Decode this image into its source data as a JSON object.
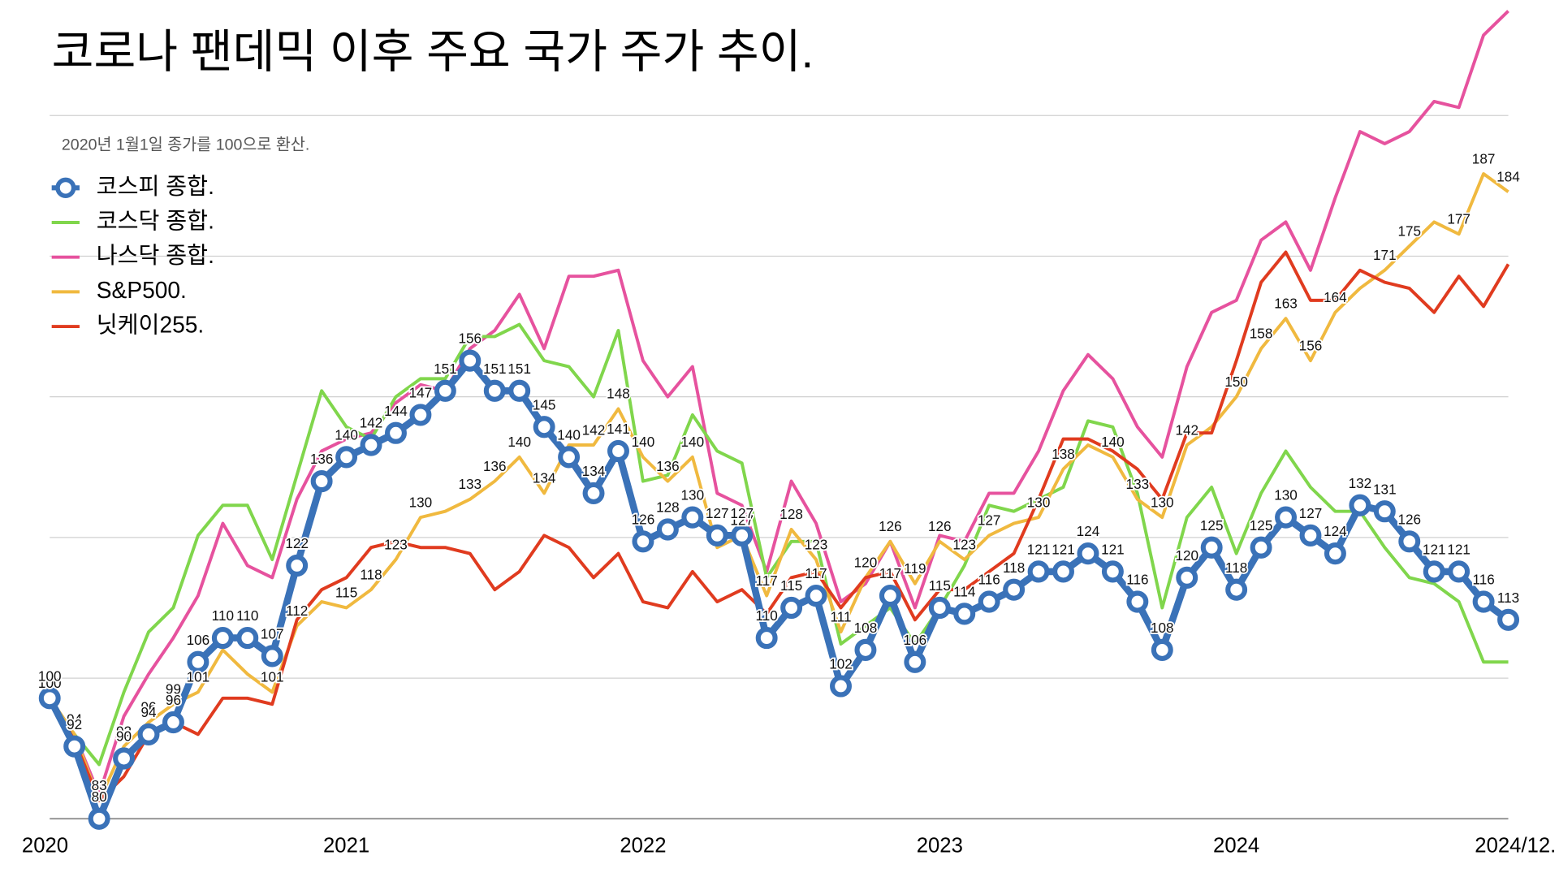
{
  "chart_data": {
    "type": "line",
    "title": "코로나 팬데믹 이후 주요 국가 주가 추이.",
    "subtitle": "2020년 1월1일 종가를 100으로 환산.",
    "categories": [
      "2020",
      null,
      null,
      null,
      null,
      null,
      null,
      null,
      null,
      null,
      null,
      null,
      "2021",
      null,
      null,
      null,
      null,
      null,
      null,
      null,
      null,
      null,
      null,
      null,
      "2022",
      null,
      null,
      null,
      null,
      null,
      null,
      null,
      null,
      null,
      null,
      null,
      "2023",
      null,
      null,
      null,
      null,
      null,
      null,
      null,
      null,
      null,
      null,
      null,
      "2024",
      null,
      null,
      null,
      null,
      null,
      null,
      null,
      null,
      null,
      null,
      "2024/12."
    ],
    "ylim": [
      80,
      215
    ],
    "yticks": [
      80,
      103.33,
      126.67,
      150,
      173.33,
      196.67
    ],
    "grid": true,
    "legend": "top-left",
    "series": [
      {
        "name": "코스피 종합.",
        "color": "#3a72b8",
        "markers": true,
        "show_labels": true,
        "values": [
          100,
          92,
          80,
          90,
          94,
          96,
          106,
          110,
          110,
          107,
          122,
          136,
          140,
          142,
          144,
          147,
          151,
          156,
          151,
          151,
          145,
          140,
          134,
          141,
          126,
          128,
          130,
          127,
          127,
          110,
          115,
          117,
          102,
          108,
          117,
          106,
          115,
          114,
          116,
          118,
          121,
          121,
          124,
          121,
          116,
          108,
          120,
          125,
          118,
          125,
          130,
          127,
          124,
          132,
          131,
          126,
          121,
          121,
          116,
          113
        ]
      },
      {
        "name": "코스닥 종합.",
        "color": "#80d64c",
        "values": [
          100,
          94,
          89,
          101,
          111,
          115,
          127,
          132,
          132,
          123,
          137,
          151,
          145,
          143,
          150,
          153,
          153,
          160,
          160,
          162,
          156,
          155,
          150,
          161,
          136,
          137,
          147,
          141,
          139,
          120,
          126,
          126,
          109,
          112,
          115,
          109,
          115,
          122,
          132,
          131,
          133,
          135,
          146,
          145,
          134,
          115,
          130,
          135,
          124,
          134,
          141,
          135,
          131,
          131,
          125,
          120,
          119,
          116,
          106,
          106
        ]
      },
      {
        "name": "나스닥 종합.",
        "color": "#e6529e",
        "values": [
          100,
          94,
          84,
          97,
          104,
          110,
          117,
          129,
          122,
          120,
          133,
          141,
          143,
          144,
          149,
          152,
          151,
          158,
          161,
          167,
          158,
          170,
          170,
          171,
          156,
          150,
          155,
          134,
          132,
          121,
          136,
          129,
          116,
          119,
          126,
          115,
          127,
          126,
          134,
          134,
          141,
          151,
          157,
          153,
          145,
          140,
          155,
          164,
          166,
          176,
          179,
          171,
          183,
          194,
          192,
          194,
          199,
          198,
          210,
          214
        ]
      },
      {
        "name": "S&P500.",
        "color": "#f0b93f",
        "values": [
          100,
          94,
          83,
          92,
          96,
          99,
          101,
          108,
          104,
          101,
          112,
          116,
          115,
          118,
          123,
          130,
          131,
          133,
          136,
          140,
          134,
          142,
          142,
          148,
          140,
          136,
          140,
          125,
          127,
          117,
          128,
          123,
          111,
          120,
          126,
          119,
          126,
          123,
          127,
          129,
          130,
          138,
          142,
          140,
          133,
          130,
          142,
          145,
          150,
          158,
          163,
          156,
          164,
          168,
          171,
          175,
          179,
          177,
          187,
          184
        ],
        "value_labels": [
          100,
          94,
          83,
          92,
          96,
          99,
          101,
          null,
          null,
          101,
          112,
          null,
          115,
          118,
          123,
          130,
          null,
          133,
          136,
          140,
          134,
          null,
          142,
          148,
          140,
          136,
          140,
          null,
          127,
          117,
          128,
          123,
          111,
          120,
          126,
          119,
          126,
          123,
          127,
          null,
          130,
          138,
          null,
          140,
          133,
          130,
          142,
          null,
          150,
          158,
          163,
          156,
          164,
          null,
          171,
          175,
          null,
          177,
          187,
          184
        ]
      },
      {
        "name": "닛케이255.",
        "color": "#e03b1f",
        "values": [
          100,
          93,
          83,
          87,
          94,
          96,
          94,
          100,
          100,
          99,
          113,
          118,
          120,
          125,
          126,
          125,
          125,
          124,
          118,
          121,
          127,
          125,
          120,
          124,
          116,
          115,
          121,
          116,
          118,
          114,
          120,
          121,
          115,
          120,
          121,
          113,
          118,
          118,
          121,
          124,
          133,
          143,
          143,
          141,
          138,
          133,
          144,
          144,
          156,
          169,
          174,
          166,
          166,
          171,
          169,
          168,
          164,
          170,
          165,
          172
        ]
      }
    ]
  }
}
